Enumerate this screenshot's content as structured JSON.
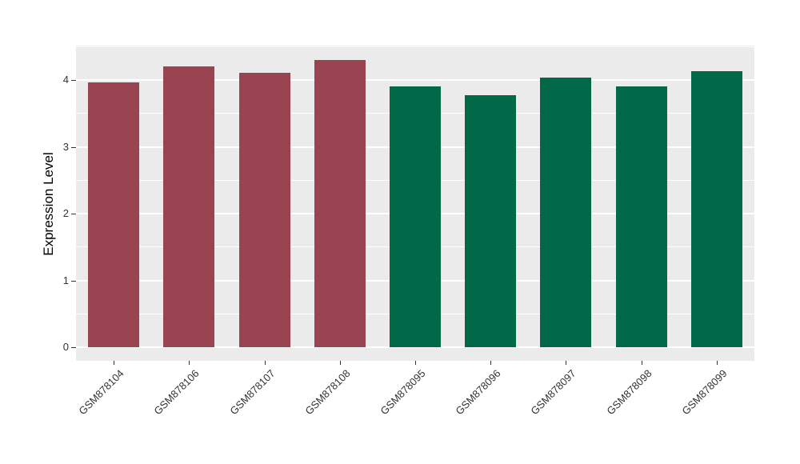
{
  "figure": {
    "background": "#FFFFFF",
    "panel_background": "#EBEBEB",
    "gridline_color": "#FFFFFF",
    "tick_text_color": "#333333"
  },
  "chart_data": {
    "type": "bar",
    "title": "",
    "xlabel": "",
    "ylabel": "Expression Level",
    "categories": [
      "GSM878104",
      "GSM878106",
      "GSM878107",
      "GSM878108",
      "GSM878095",
      "GSM878096",
      "GSM878097",
      "GSM878098",
      "GSM878099"
    ],
    "values": [
      3.96,
      4.2,
      4.11,
      4.3,
      3.91,
      3.77,
      4.04,
      3.91,
      4.13
    ],
    "bar_colors": [
      "#9A4451",
      "#9A4451",
      "#9A4451",
      "#9A4451",
      "#026948",
      "#026948",
      "#026948",
      "#026948",
      "#026948"
    ],
    "color_groups": [
      {
        "name": "maroon-group",
        "color": "#9A4451",
        "categories": [
          "GSM878104",
          "GSM878106",
          "GSM878107",
          "GSM878108"
        ]
      },
      {
        "name": "green-group",
        "color": "#026948",
        "categories": [
          "GSM878095",
          "GSM878096",
          "GSM878097",
          "GSM878098",
          "GSM878099"
        ]
      }
    ],
    "yticks": [
      0,
      1,
      2,
      3,
      4
    ],
    "minor_yticks": [
      0.5,
      1.5,
      2.5,
      3.5,
      4.5
    ],
    "ylim": [
      -0.2,
      4.52
    ],
    "grid": true,
    "legend": "none"
  }
}
